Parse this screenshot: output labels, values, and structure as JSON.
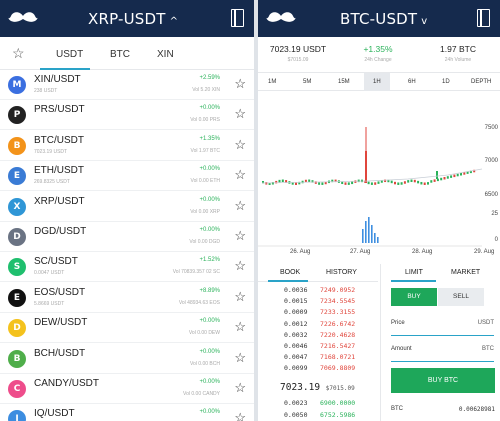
{
  "left": {
    "title": "XRP-USDT",
    "tabs": [
      "USDT",
      "BTC",
      "XIN"
    ],
    "rows": [
      {
        "pair": "XIN/USDT",
        "sub": "238 USDT",
        "change": "+2.59%",
        "vol": "Vol 5.20 XIN",
        "color": "#3b6fe0",
        "glyph": "M"
      },
      {
        "pair": "PRS/USDT",
        "sub": "",
        "change": "+0.00%",
        "vol": "Vol 0.00 PRS",
        "color": "#222",
        "glyph": "P"
      },
      {
        "pair": "BTC/USDT",
        "sub": "7023.19 USDT",
        "change": "+1.35%",
        "vol": "Vol 1.97 BTC",
        "color": "#f3931a",
        "glyph": "B"
      },
      {
        "pair": "ETH/USDT",
        "sub": "269.8325 USDT",
        "change": "+0.00%",
        "vol": "Vol 0.00 ETH",
        "color": "#3a7bd5",
        "glyph": "E"
      },
      {
        "pair": "XRP/USDT",
        "sub": "",
        "change": "+0.00%",
        "vol": "Vol 0.00 XRP",
        "color": "#2f96d6",
        "glyph": "X"
      },
      {
        "pair": "DGD/USDT",
        "sub": "",
        "change": "+0.00%",
        "vol": "Vol 0.00 DGD",
        "color": "#6a7383",
        "glyph": "D"
      },
      {
        "pair": "SC/USDT",
        "sub": "0.0047 USDT",
        "change": "+1.52%",
        "vol": "Vol 70839.357 02 SC",
        "color": "#1fbf6e",
        "glyph": "S"
      },
      {
        "pair": "EOS/USDT",
        "sub": "5.8669 USDT",
        "change": "+8.89%",
        "vol": "Vol 48934.63 EOS",
        "color": "#111",
        "glyph": "E"
      },
      {
        "pair": "DEW/USDT",
        "sub": "",
        "change": "+0.00%",
        "vol": "Vol 0.00 DEW",
        "color": "#f4c21d",
        "glyph": "D"
      },
      {
        "pair": "BCH/USDT",
        "sub": "",
        "change": "+0.00%",
        "vol": "Vol 0.00 BCH",
        "color": "#4fae4a",
        "glyph": "B"
      },
      {
        "pair": "CANDY/USDT",
        "sub": "",
        "change": "+0.00%",
        "vol": "Vol 0.00 CANDY",
        "color": "#ee4d8b",
        "glyph": "C"
      },
      {
        "pair": "IQ/USDT",
        "sub": "",
        "change": "+0.00%",
        "vol": "Vol 0.00 IQ",
        "color": "#3c8de0",
        "glyph": "I"
      }
    ]
  },
  "right": {
    "title": "BTC-USDT",
    "stats": [
      {
        "value": "7023.19 USDT",
        "label": "$7015.09"
      },
      {
        "value": "+1.35%",
        "label": "24h Change"
      },
      {
        "value": "1.97 BTC",
        "label": "24h Volume"
      }
    ],
    "intervals": [
      "1M",
      "5M",
      "15M",
      "1H",
      "6H",
      "1D",
      "DEPTH"
    ],
    "selected_interval": "1H",
    "chart_axis": {
      "price_ticks": [
        "7500",
        "7000",
        "6500"
      ],
      "volume_ticks": [
        "25",
        "0"
      ],
      "dates": [
        "26. Aug",
        "27. Aug",
        "28. Aug",
        "29. Aug"
      ]
    },
    "book_tabs": [
      "BOOK",
      "HISTORY"
    ],
    "asks": [
      {
        "qty": "0.0036",
        "price": "7249.0952"
      },
      {
        "qty": "0.0015",
        "price": "7234.5545"
      },
      {
        "qty": "0.0009",
        "price": "7233.3155"
      },
      {
        "qty": "0.0012",
        "price": "7226.6742"
      },
      {
        "qty": "0.0032",
        "price": "7220.4628"
      },
      {
        "qty": "0.0046",
        "price": "7216.5427"
      },
      {
        "qty": "0.0047",
        "price": "7168.0721"
      },
      {
        "qty": "0.0099",
        "price": "7069.8809"
      }
    ],
    "mid_price": "7023.19",
    "mid_usd": "$7015.09",
    "bids": [
      {
        "qty": "0.0023",
        "price": "6900.0000"
      },
      {
        "qty": "0.0050",
        "price": "6752.5986"
      }
    ],
    "trade_tabs": [
      "LIMIT",
      "MARKET"
    ],
    "buy_label": "BUY",
    "sell_label": "SELL",
    "price_label": "Price",
    "price_unit": "USDT",
    "amount_label": "Amount",
    "amount_unit": "BTC",
    "buy_btn": "BUY BTC",
    "balance_unit": "BTC",
    "balance_value": "0.00628981"
  }
}
